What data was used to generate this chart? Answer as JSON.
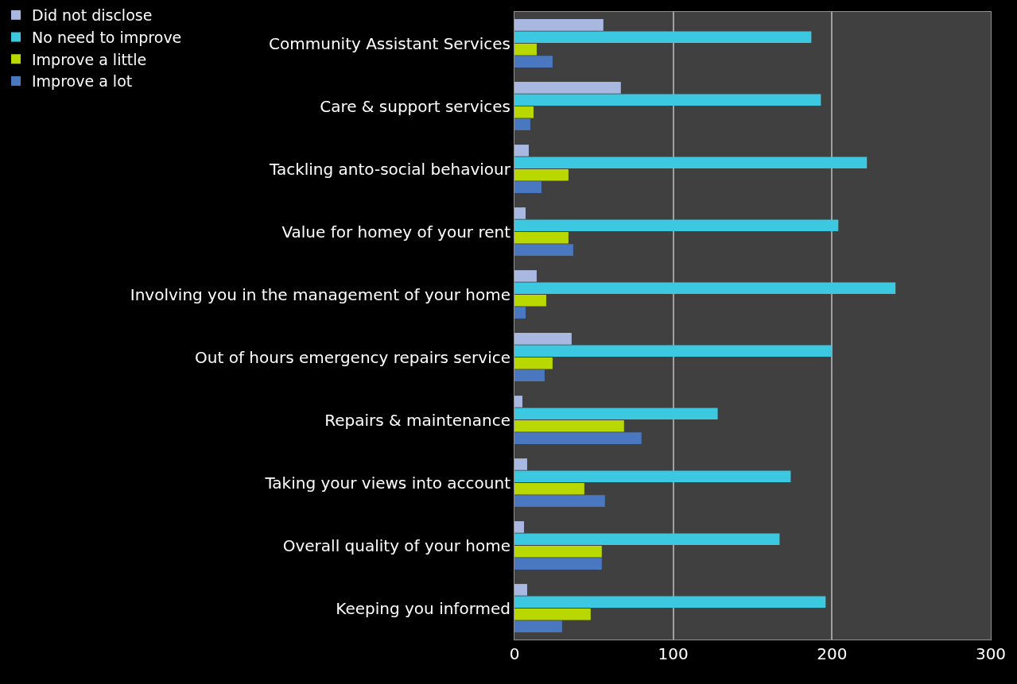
{
  "chart_data": {
    "type": "bar",
    "orientation": "horizontal",
    "categories": [
      "Community Assistant Services",
      "Care & support services",
      "Tackling anto-social behaviour",
      "Value for homey of your rent",
      "Involving you in the management of your home",
      "Out of hours emergency repairs service",
      "Repairs & maintenance",
      "Taking your views into account",
      "Overall quality of your home",
      "Keeping you informed"
    ],
    "series": [
      {
        "name": "Did not disclose",
        "color": "#a9b8e0",
        "values": [
          56,
          67,
          9,
          7,
          14,
          36,
          5,
          8,
          6,
          8
        ]
      },
      {
        "name": "No need to improve",
        "color": "#3cc8e0",
        "values": [
          187,
          193,
          222,
          204,
          240,
          200,
          128,
          174,
          167,
          196
        ]
      },
      {
        "name": "Improve a little",
        "color": "#b8d800",
        "values": [
          14,
          12,
          34,
          34,
          20,
          24,
          69,
          44,
          55,
          48
        ]
      },
      {
        "name": "Improve a lot",
        "color": "#4a78c0",
        "values": [
          24,
          10,
          17,
          37,
          7,
          19,
          80,
          57,
          55,
          30
        ]
      }
    ],
    "xlim": [
      0,
      300
    ],
    "xticks": [
      0,
      100,
      200,
      300
    ],
    "grid": "x",
    "legend": "top left"
  }
}
